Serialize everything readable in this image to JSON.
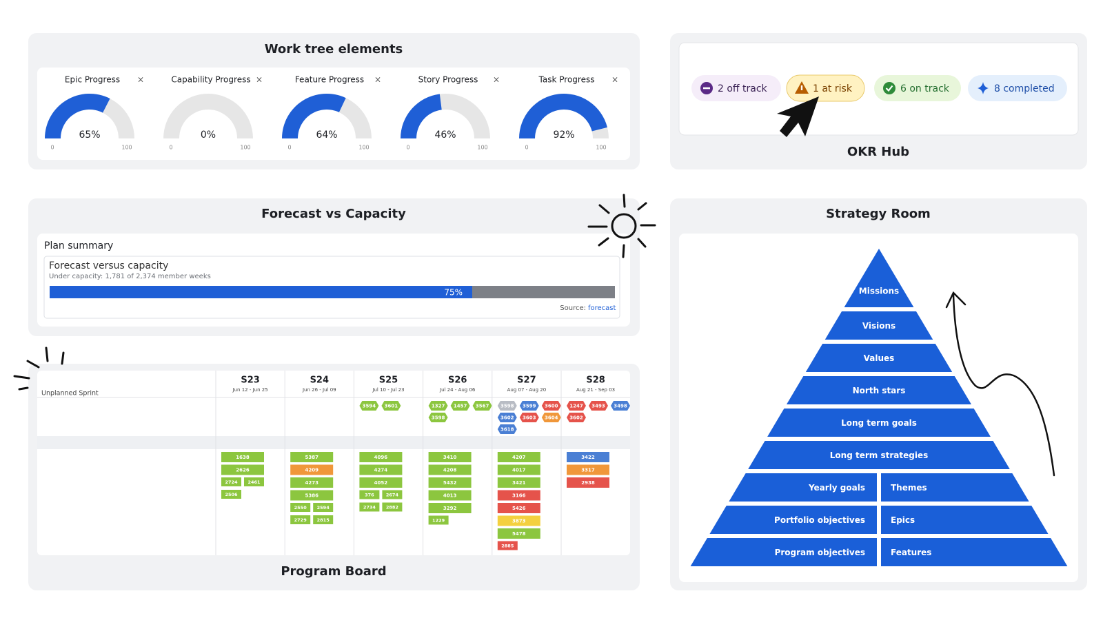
{
  "work_tree": {
    "title": "Work tree elements",
    "close_icon": "×",
    "gauges": [
      {
        "label": "Epic Progress",
        "value": 65,
        "value_label": "65%",
        "min": 0,
        "max": 100
      },
      {
        "label": "Capability Progress",
        "value": 0,
        "value_label": "0%",
        "min": 0,
        "max": 100
      },
      {
        "label": "Feature Progress",
        "value": 64,
        "value_label": "64%",
        "min": 0,
        "max": 100
      },
      {
        "label": "Story Progress",
        "value": 46,
        "value_label": "46%",
        "min": 0,
        "max": 100
      },
      {
        "label": "Task Progress",
        "value": 92,
        "value_label": "92%",
        "min": 0,
        "max": 100
      }
    ]
  },
  "okr_hub": {
    "title": "OKR Hub",
    "pills": [
      {
        "label": "2 off track",
        "color": "#5b2a86",
        "background": "#f5edf9"
      },
      {
        "label": "1 at risk",
        "color": "#b75d00",
        "background": "#fff2c2"
      },
      {
        "label": "6 on track",
        "color": "#2e8b3a",
        "background": "#e8f6da"
      },
      {
        "label": "8 completed",
        "color": "#1f5fd6",
        "background": "#e4effc"
      }
    ]
  },
  "forecast": {
    "title": "Forecast vs Capacity",
    "panel_title": "Plan summary",
    "heading": "Forecast versus capacity",
    "subheading": "Under capacity: 1,781 of 2,374 member weeks",
    "value": 75,
    "value_label": "75%",
    "source_label": "Source:",
    "source_link": "forecast"
  },
  "program_board": {
    "title": "Program Board",
    "row_label": "Unplanned Sprint",
    "palette": {
      "green": "#8cc63f",
      "orange": "#f0973a",
      "red": "#e5534b",
      "blue": "#4a7fd4",
      "yellow": "#f4d03f",
      "grey": "#b8bcc4"
    },
    "sprints": [
      {
        "name": "S23",
        "dates": "Jun 12 - Jun 25",
        "unplanned": [],
        "planned": [
          {
            "id": "1638",
            "color": "green"
          },
          {
            "id": "2626",
            "color": "green"
          }
        ],
        "planned_small": [
          {
            "id": "2724",
            "color": "green"
          },
          {
            "id": "2461",
            "color": "green"
          },
          {
            "id": "2506",
            "color": "green"
          }
        ]
      },
      {
        "name": "S24",
        "dates": "Jun 26 - Jul 09",
        "unplanned": [],
        "planned": [
          {
            "id": "5387",
            "color": "green"
          },
          {
            "id": "4209",
            "color": "orange"
          },
          {
            "id": "4273",
            "color": "green"
          },
          {
            "id": "5386",
            "color": "green"
          }
        ],
        "planned_small": [
          {
            "id": "2550",
            "color": "green"
          },
          {
            "id": "2594",
            "color": "green"
          },
          {
            "id": "2729",
            "color": "green"
          },
          {
            "id": "2815",
            "color": "green"
          }
        ]
      },
      {
        "name": "S25",
        "dates": "Jul 10 - Jul 23",
        "unplanned": [
          {
            "id": "3594",
            "color": "green"
          },
          {
            "id": "3601",
            "color": "green"
          }
        ],
        "planned": [
          {
            "id": "4096",
            "color": "green"
          },
          {
            "id": "4274",
            "color": "green"
          },
          {
            "id": "4052",
            "color": "green"
          }
        ],
        "planned_small": [
          {
            "id": "376",
            "color": "green"
          },
          {
            "id": "2674",
            "color": "green"
          },
          {
            "id": "2734",
            "color": "green"
          },
          {
            "id": "2882",
            "color": "green"
          }
        ]
      },
      {
        "name": "S26",
        "dates": "Jul 24 - Aug 06",
        "unplanned": [
          {
            "id": "1327",
            "color": "green"
          },
          {
            "id": "1457",
            "color": "green"
          },
          {
            "id": "3567",
            "color": "green"
          },
          {
            "id": "3598",
            "color": "green"
          }
        ],
        "planned": [
          {
            "id": "3410",
            "color": "green"
          },
          {
            "id": "4208",
            "color": "green"
          },
          {
            "id": "5432",
            "color": "green"
          },
          {
            "id": "4013",
            "color": "green"
          },
          {
            "id": "3292",
            "color": "green"
          }
        ],
        "planned_small": [
          {
            "id": "1229",
            "color": "green"
          }
        ]
      },
      {
        "name": "S27",
        "dates": "Aug 07 - Aug 20",
        "unplanned": [
          {
            "id": "3598",
            "color": "grey"
          },
          {
            "id": "3599",
            "color": "blue"
          },
          {
            "id": "3600",
            "color": "red"
          },
          {
            "id": "3602",
            "color": "blue"
          },
          {
            "id": "3603",
            "color": "red"
          },
          {
            "id": "3604",
            "color": "orange"
          },
          {
            "id": "3618",
            "color": "blue"
          }
        ],
        "planned": [
          {
            "id": "4207",
            "color": "green"
          },
          {
            "id": "4017",
            "color": "green"
          },
          {
            "id": "3421",
            "color": "green"
          },
          {
            "id": "3166",
            "color": "red"
          },
          {
            "id": "5426",
            "color": "red"
          },
          {
            "id": "3873",
            "color": "yellow"
          },
          {
            "id": "5478",
            "color": "green"
          }
        ],
        "planned_small": [
          {
            "id": "2885",
            "color": "red"
          }
        ]
      },
      {
        "name": "S28",
        "dates": "Aug 21 - Sep 03",
        "unplanned": [
          {
            "id": "1247",
            "color": "red"
          },
          {
            "id": "3493",
            "color": "red"
          },
          {
            "id": "3498",
            "color": "blue"
          },
          {
            "id": "3602",
            "color": "red"
          }
        ],
        "planned": [
          {
            "id": "3422",
            "color": "blue"
          },
          {
            "id": "3317",
            "color": "orange"
          },
          {
            "id": "2938",
            "color": "red"
          }
        ],
        "planned_small": []
      }
    ]
  },
  "strategy_room": {
    "title": "Strategy Room",
    "levels": [
      "Missions",
      "Visions",
      "Values",
      "North stars",
      "Long term goals",
      "Long term strategies"
    ],
    "split_levels": [
      {
        "left": "Yearly goals",
        "right": "Themes"
      },
      {
        "left": "Portfolio objectives",
        "right": "Epics"
      },
      {
        "left": "Program objectives",
        "right": "Features"
      }
    ]
  }
}
